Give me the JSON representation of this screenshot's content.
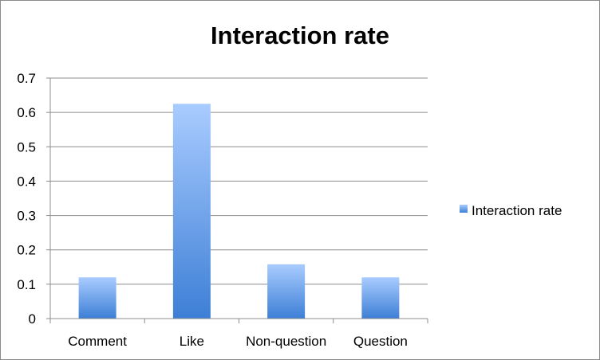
{
  "chart_data": {
    "type": "bar",
    "title": "Interaction rate",
    "categories": [
      "Comment",
      "Like",
      "Non-question",
      "Question"
    ],
    "series": [
      {
        "name": "Interaction rate",
        "values": [
          0.12,
          0.625,
          0.158,
          0.12
        ]
      }
    ],
    "ylim": [
      0,
      0.7
    ],
    "yticks": [
      "0",
      "0.1",
      "0.2",
      "0.3",
      "0.4",
      "0.5",
      "0.6",
      "0.7"
    ],
    "grid": true,
    "legend_position": "right",
    "colors": {
      "bar_top": "#a9ccff",
      "bar_bottom": "#3d7fd6",
      "grid": "#8c8c8c"
    }
  }
}
